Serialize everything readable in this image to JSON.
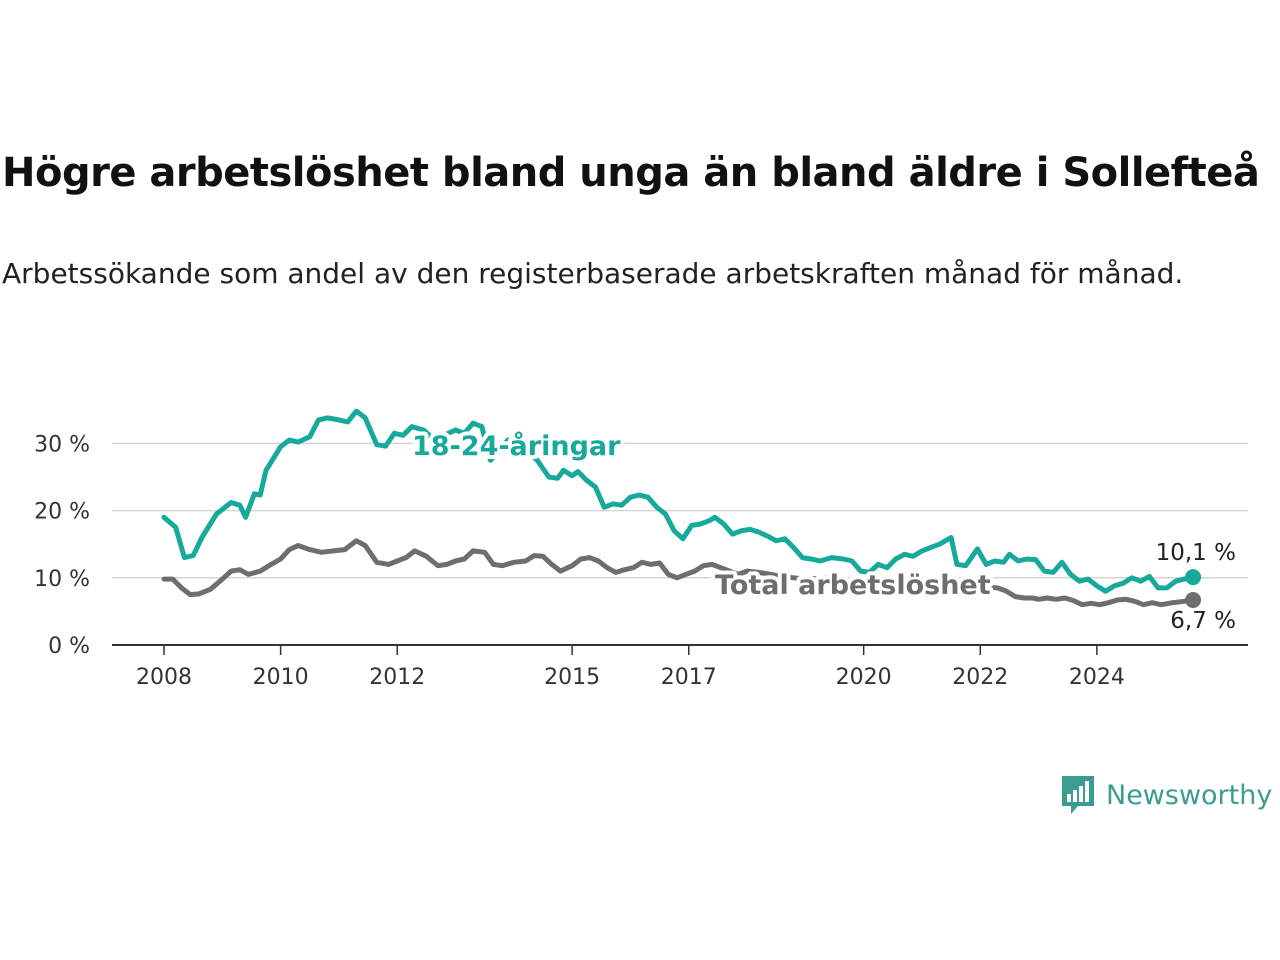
{
  "chart_data": {
    "type": "line",
    "title": "Högre arbetslöshet bland unga än bland äldre i Sollefteå",
    "subtitle": "Arbetssökande som andel av den registerbaserade arbetskraften månad för månad.",
    "xlabel": "",
    "ylabel": "",
    "x_ticks": [
      2008,
      2010,
      2012,
      2015,
      2017,
      2020,
      2022,
      2024
    ],
    "y_ticks": [
      0,
      10,
      20,
      30
    ],
    "y_tick_labels": [
      "0 %",
      "10 %",
      "20 %",
      "30 %"
    ],
    "ylim": [
      0,
      35
    ],
    "xlim": [
      2007.6,
      2025.8
    ],
    "grid": "horizontal",
    "legend": "direct labels on lines",
    "series": [
      {
        "name": "18-24-åringar",
        "color": "#17a99b",
        "end_label": "10,1 %",
        "points": [
          [
            2008.0,
            19.0
          ],
          [
            2008.2,
            17.5
          ],
          [
            2008.35,
            13.0
          ],
          [
            2008.5,
            13.3
          ],
          [
            2008.65,
            16.0
          ],
          [
            2008.9,
            19.5
          ],
          [
            2009.15,
            21.2
          ],
          [
            2009.3,
            20.8
          ],
          [
            2009.4,
            19.0
          ],
          [
            2009.55,
            22.5
          ],
          [
            2009.65,
            22.3
          ],
          [
            2009.75,
            26.0
          ],
          [
            2010.0,
            29.5
          ],
          [
            2010.15,
            30.5
          ],
          [
            2010.3,
            30.2
          ],
          [
            2010.5,
            31.0
          ],
          [
            2010.65,
            33.5
          ],
          [
            2010.8,
            33.8
          ],
          [
            2011.0,
            33.5
          ],
          [
            2011.15,
            33.2
          ],
          [
            2011.3,
            34.8
          ],
          [
            2011.45,
            33.8
          ],
          [
            2011.65,
            29.8
          ],
          [
            2011.8,
            29.6
          ],
          [
            2011.95,
            31.5
          ],
          [
            2012.1,
            31.2
          ],
          [
            2012.25,
            32.5
          ],
          [
            2012.45,
            32.0
          ],
          [
            2012.6,
            30.8
          ],
          [
            2012.8,
            31.2
          ],
          [
            2013.0,
            32.0
          ],
          [
            2013.15,
            31.5
          ],
          [
            2013.3,
            33.0
          ],
          [
            2013.45,
            32.5
          ],
          [
            2013.6,
            27.5
          ],
          [
            2013.9,
            30.5
          ],
          [
            2014.2,
            29.0
          ],
          [
            2014.4,
            27.5
          ],
          [
            2014.6,
            25.0
          ],
          [
            2014.75,
            24.8
          ],
          [
            2014.85,
            26.0
          ],
          [
            2015.0,
            25.2
          ],
          [
            2015.1,
            25.8
          ],
          [
            2015.25,
            24.5
          ],
          [
            2015.4,
            23.5
          ],
          [
            2015.55,
            20.5
          ],
          [
            2015.7,
            21.0
          ],
          [
            2015.85,
            20.8
          ],
          [
            2016.0,
            22.0
          ],
          [
            2016.15,
            22.3
          ],
          [
            2016.3,
            22.0
          ],
          [
            2016.45,
            20.5
          ],
          [
            2016.6,
            19.5
          ],
          [
            2016.75,
            17.0
          ],
          [
            2016.9,
            15.8
          ],
          [
            2017.05,
            17.8
          ],
          [
            2017.2,
            18.0
          ],
          [
            2017.35,
            18.5
          ],
          [
            2017.45,
            19.0
          ],
          [
            2017.6,
            18.0
          ],
          [
            2017.75,
            16.5
          ],
          [
            2017.9,
            17.0
          ],
          [
            2018.05,
            17.2
          ],
          [
            2018.2,
            16.8
          ],
          [
            2018.35,
            16.2
          ],
          [
            2018.5,
            15.5
          ],
          [
            2018.65,
            15.8
          ],
          [
            2018.8,
            14.5
          ],
          [
            2018.95,
            13.0
          ],
          [
            2019.1,
            12.8
          ],
          [
            2019.25,
            12.5
          ],
          [
            2019.45,
            13.0
          ],
          [
            2019.65,
            12.8
          ],
          [
            2019.8,
            12.5
          ],
          [
            2019.95,
            11.0
          ],
          [
            2020.1,
            10.8
          ],
          [
            2020.25,
            12.0
          ],
          [
            2020.4,
            11.5
          ],
          [
            2020.55,
            12.8
          ],
          [
            2020.7,
            13.5
          ],
          [
            2020.85,
            13.2
          ],
          [
            2021.0,
            14.0
          ],
          [
            2021.15,
            14.5
          ],
          [
            2021.3,
            15.0
          ],
          [
            2021.5,
            16.0
          ],
          [
            2021.6,
            12.0
          ],
          [
            2021.75,
            11.8
          ],
          [
            2021.95,
            14.3
          ],
          [
            2022.1,
            12.0
          ],
          [
            2022.25,
            12.5
          ],
          [
            2022.4,
            12.3
          ],
          [
            2022.5,
            13.5
          ],
          [
            2022.65,
            12.5
          ],
          [
            2022.8,
            12.8
          ],
          [
            2022.95,
            12.7
          ],
          [
            2023.1,
            11.0
          ],
          [
            2023.25,
            10.8
          ],
          [
            2023.4,
            12.3
          ],
          [
            2023.55,
            10.5
          ],
          [
            2023.7,
            9.5
          ],
          [
            2023.85,
            9.8
          ],
          [
            2024.0,
            8.8
          ],
          [
            2024.15,
            8.0
          ],
          [
            2024.3,
            8.8
          ],
          [
            2024.45,
            9.2
          ],
          [
            2024.6,
            10.0
          ],
          [
            2024.75,
            9.5
          ],
          [
            2024.9,
            10.2
          ],
          [
            2025.05,
            8.5
          ],
          [
            2025.2,
            8.5
          ],
          [
            2025.35,
            9.5
          ],
          [
            2025.5,
            9.8
          ],
          [
            2025.65,
            10.1
          ]
        ]
      },
      {
        "name": "Total arbetslöshet",
        "color": "#6e6e70",
        "end_label": "6,7 %",
        "points": [
          [
            2008.0,
            9.8
          ],
          [
            2008.15,
            9.8
          ],
          [
            2008.3,
            8.5
          ],
          [
            2008.45,
            7.5
          ],
          [
            2008.6,
            7.6
          ],
          [
            2008.8,
            8.3
          ],
          [
            2009.0,
            9.8
          ],
          [
            2009.15,
            11.0
          ],
          [
            2009.3,
            11.2
          ],
          [
            2009.45,
            10.5
          ],
          [
            2009.65,
            11.0
          ],
          [
            2009.8,
            11.8
          ],
          [
            2010.0,
            12.8
          ],
          [
            2010.15,
            14.2
          ],
          [
            2010.3,
            14.8
          ],
          [
            2010.5,
            14.2
          ],
          [
            2010.7,
            13.8
          ],
          [
            2010.9,
            14.0
          ],
          [
            2011.1,
            14.2
          ],
          [
            2011.3,
            15.5
          ],
          [
            2011.45,
            14.8
          ],
          [
            2011.65,
            12.3
          ],
          [
            2011.85,
            12.0
          ],
          [
            2012.0,
            12.5
          ],
          [
            2012.15,
            13.0
          ],
          [
            2012.3,
            14.0
          ],
          [
            2012.5,
            13.2
          ],
          [
            2012.7,
            11.8
          ],
          [
            2012.85,
            12.0
          ],
          [
            2013.0,
            12.5
          ],
          [
            2013.15,
            12.8
          ],
          [
            2013.3,
            14.0
          ],
          [
            2013.5,
            13.8
          ],
          [
            2013.65,
            12.0
          ],
          [
            2013.8,
            11.8
          ],
          [
            2014.0,
            12.3
          ],
          [
            2014.2,
            12.5
          ],
          [
            2014.35,
            13.3
          ],
          [
            2014.5,
            13.2
          ],
          [
            2014.65,
            12.0
          ],
          [
            2014.8,
            11.0
          ],
          [
            2015.0,
            11.8
          ],
          [
            2015.15,
            12.8
          ],
          [
            2015.3,
            13.0
          ],
          [
            2015.45,
            12.5
          ],
          [
            2015.6,
            11.5
          ],
          [
            2015.75,
            10.8
          ],
          [
            2015.9,
            11.2
          ],
          [
            2016.05,
            11.5
          ],
          [
            2016.2,
            12.3
          ],
          [
            2016.35,
            12.0
          ],
          [
            2016.5,
            12.2
          ],
          [
            2016.65,
            10.5
          ],
          [
            2016.8,
            10.0
          ],
          [
            2016.95,
            10.5
          ],
          [
            2017.1,
            11.0
          ],
          [
            2017.25,
            11.8
          ],
          [
            2017.4,
            12.0
          ],
          [
            2017.55,
            11.5
          ],
          [
            2017.7,
            11.0
          ],
          [
            2017.85,
            10.5
          ],
          [
            2018.0,
            11.0
          ],
          [
            2018.2,
            10.8
          ],
          [
            2018.4,
            10.5
          ],
          [
            2018.6,
            10.2
          ],
          [
            2018.8,
            10.0
          ],
          [
            2019.0,
            9.8
          ],
          [
            2019.2,
            9.9
          ],
          [
            2019.4,
            10.0
          ],
          [
            2019.6,
            9.5
          ],
          [
            2019.8,
            9.3
          ],
          [
            2020.0,
            9.0
          ],
          [
            2020.2,
            9.3
          ],
          [
            2020.4,
            9.2
          ],
          [
            2020.6,
            9.0
          ],
          [
            2020.8,
            8.8
          ],
          [
            2021.0,
            9.0
          ],
          [
            2021.2,
            8.7
          ],
          [
            2021.4,
            8.5
          ],
          [
            2021.6,
            8.3
          ],
          [
            2021.8,
            8.2
          ],
          [
            2022.0,
            8.0
          ],
          [
            2022.15,
            8.6
          ],
          [
            2022.3,
            8.5
          ],
          [
            2022.45,
            8.0
          ],
          [
            2022.6,
            7.2
          ],
          [
            2022.75,
            7.0
          ],
          [
            2022.9,
            7.0
          ],
          [
            2023.0,
            6.8
          ],
          [
            2023.15,
            7.0
          ],
          [
            2023.3,
            6.8
          ],
          [
            2023.45,
            7.0
          ],
          [
            2023.6,
            6.6
          ],
          [
            2023.75,
            6.0
          ],
          [
            2023.9,
            6.2
          ],
          [
            2024.05,
            6.0
          ],
          [
            2024.2,
            6.3
          ],
          [
            2024.35,
            6.7
          ],
          [
            2024.5,
            6.8
          ],
          [
            2024.65,
            6.5
          ],
          [
            2024.8,
            6.0
          ],
          [
            2024.95,
            6.3
          ],
          [
            2025.1,
            6.0
          ],
          [
            2025.3,
            6.3
          ],
          [
            2025.5,
            6.5
          ],
          [
            2025.65,
            6.7
          ]
        ]
      }
    ]
  },
  "brand": {
    "name": "Newsworthy",
    "icon": "bar-chart-speech-bubble-icon",
    "color": "#3a9d8f"
  }
}
